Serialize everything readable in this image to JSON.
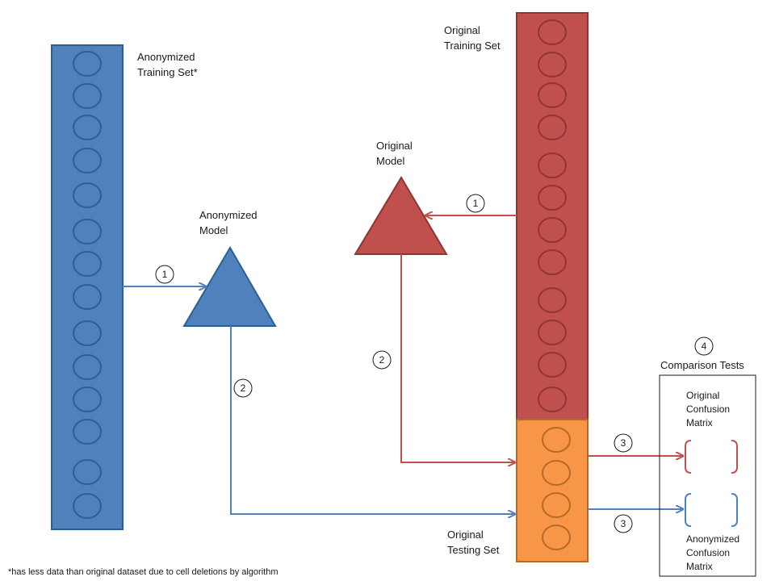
{
  "labels": {
    "anonymized_training_set": [
      "Anonymized",
      "Training Set*"
    ],
    "original_training_set": [
      "Original",
      "Training Set"
    ],
    "original_model": [
      "Original",
      "Model"
    ],
    "anonymized_model": [
      "Anonymized",
      "Model"
    ],
    "original_testing_set": [
      "Original",
      "Testing Set"
    ],
    "comparison_tests": "Comparison Tests",
    "original_confusion_matrix": [
      "Original",
      "Confusion",
      "Matrix"
    ],
    "anonymized_confusion_matrix": [
      "Anonymized",
      "Confusion",
      "Matrix"
    ],
    "footnote": "*has less data than original dataset due to cell deletions by algorithm"
  },
  "steps": {
    "anon_train": "1",
    "anon_to_test": "2",
    "orig_train": "1",
    "orig_to_test": "2",
    "orig_matrix": "3",
    "anon_matrix": "3",
    "compare": "4"
  },
  "colors": {
    "blue_fill": "#4f81bd",
    "blue_stroke": "#2e5f94",
    "red_fill": "#c0504d",
    "red_stroke": "#923431",
    "orange_fill": "#f79646",
    "orange_stroke": "#b66a27"
  }
}
